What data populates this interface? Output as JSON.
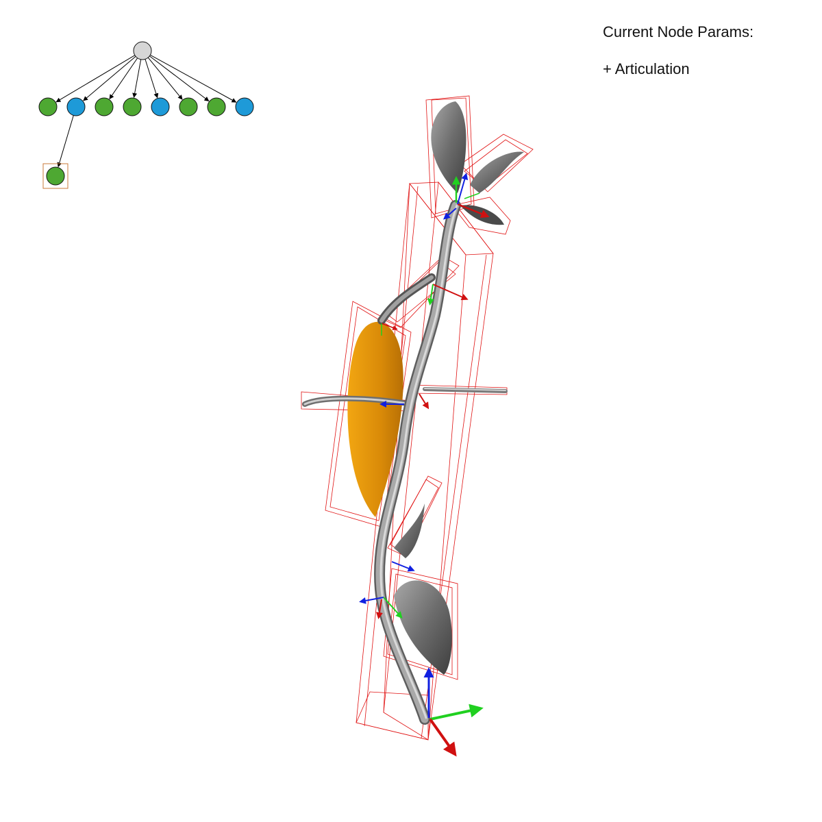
{
  "panel": {
    "title": "Current Node Params:",
    "items": [
      {
        "label": "+ Articulation"
      }
    ]
  },
  "tree": {
    "root": {
      "color": "#d6d6d6"
    },
    "children": [
      {
        "type": "leaf",
        "color": "#4ea832"
      },
      {
        "type": "branch",
        "color": "#1e9ad8"
      },
      {
        "type": "leaf",
        "color": "#4ea832"
      },
      {
        "type": "leaf",
        "color": "#4ea832"
      },
      {
        "type": "branch",
        "color": "#1e9ad8"
      },
      {
        "type": "leaf",
        "color": "#4ea832"
      },
      {
        "type": "leaf",
        "color": "#4ea832"
      },
      {
        "type": "branch",
        "color": "#1e9ad8"
      }
    ],
    "selected": {
      "color": "#4ea832",
      "parent_index": 1,
      "highlight": "#c87838"
    }
  },
  "colors": {
    "bounding_box": "#e01010",
    "stem": "#8c8c8c",
    "leaf_gray": "#6e6e6e",
    "leaf_selected": "#e89a10",
    "axis_x": "#e01010",
    "axis_y": "#20d020",
    "axis_z": "#1020e0"
  }
}
